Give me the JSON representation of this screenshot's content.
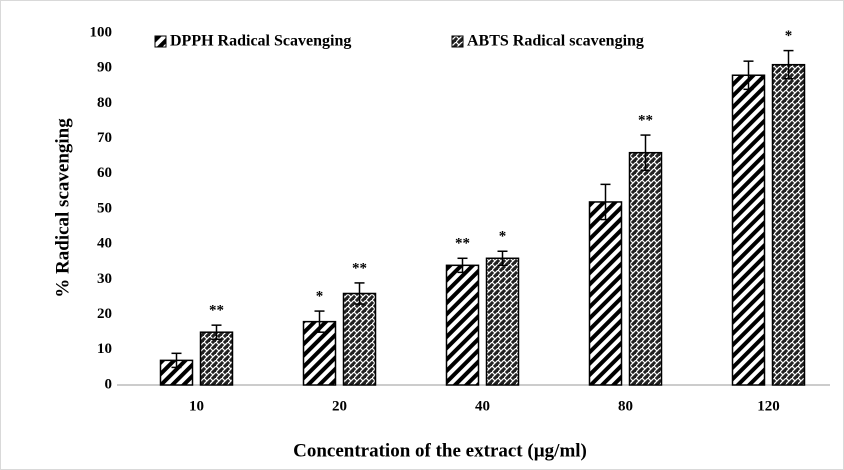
{
  "chart_data": {
    "type": "bar",
    "x_label": "Concentration of the extract (µg/ml)",
    "y_label": "% Radical scavenging",
    "categories": [
      "10",
      "20",
      "40",
      "80",
      "120"
    ],
    "series": [
      {
        "name": "DPPH Radical Scavenging",
        "color": "#000000",
        "pattern": "stripes",
        "values": [
          7,
          18,
          34,
          52,
          88
        ],
        "errors": [
          2,
          3,
          2,
          5,
          4
        ],
        "significance": [
          null,
          "*",
          "**",
          null,
          null
        ]
      },
      {
        "name": "ABTS Radical scavenging",
        "color": "#000000",
        "pattern": "weave",
        "values": [
          15,
          26,
          36,
          66,
          91
        ],
        "errors": [
          2,
          3,
          2,
          5,
          4
        ],
        "significance": [
          "**",
          "**",
          "*",
          "**",
          "*"
        ]
      }
    ],
    "ylim": [
      0,
      100
    ],
    "yticks": [
      0,
      10,
      20,
      30,
      40,
      50,
      60,
      70,
      80,
      90,
      100
    ],
    "grid": false
  }
}
